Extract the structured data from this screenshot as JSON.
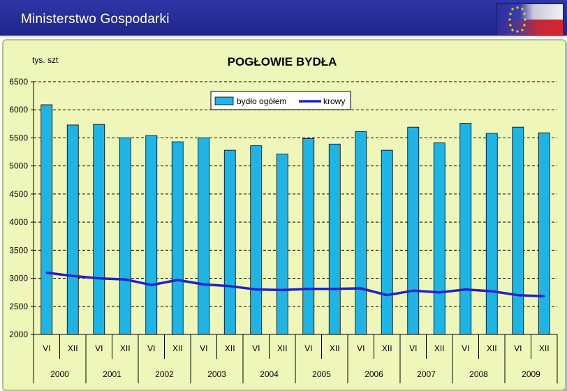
{
  "header": {
    "title": "Ministerstwo Gospodarki"
  },
  "colors": {
    "bar": "#1fb4e6",
    "line": "#1e22c8",
    "header": "#2a31a0",
    "panel": "#eef6b9"
  },
  "icons": {
    "flag": "eu-poland-flag-icon"
  },
  "chart_data": {
    "type": "bar",
    "title": "POGŁOWIE BYDŁA",
    "unit_label": "tys. szt",
    "ylim": [
      2000,
      6500
    ],
    "yticks": [
      2000,
      2500,
      3000,
      3500,
      4000,
      4500,
      5000,
      5500,
      6000,
      6500
    ],
    "grid": "dashed-horizontal",
    "legend_position": "top-right",
    "months": [
      "VI",
      "XII",
      "VI",
      "XII",
      "VI",
      "XII",
      "VI",
      "XII",
      "VI",
      "XII",
      "VI",
      "XII",
      "VI",
      "XII",
      "VI",
      "XII",
      "VI",
      "XII",
      "VI",
      "XII"
    ],
    "years": [
      "2000",
      "2001",
      "2002",
      "2003",
      "2004",
      "2005",
      "2006",
      "2007",
      "2008",
      "2009"
    ],
    "series": [
      {
        "name": "bydło ogółem",
        "type": "bar",
        "values": [
          6090,
          5730,
          5740,
          5500,
          5540,
          5430,
          5500,
          5280,
          5360,
          5210,
          5490,
          5390,
          5610,
          5280,
          5690,
          5410,
          5760,
          5580,
          5690,
          5590
        ]
      },
      {
        "name": "krowy",
        "type": "line",
        "values": [
          3100,
          3040,
          3000,
          2980,
          2880,
          2970,
          2890,
          2860,
          2800,
          2790,
          2810,
          2810,
          2820,
          2700,
          2780,
          2750,
          2800,
          2770,
          2700,
          2680
        ]
      }
    ]
  }
}
